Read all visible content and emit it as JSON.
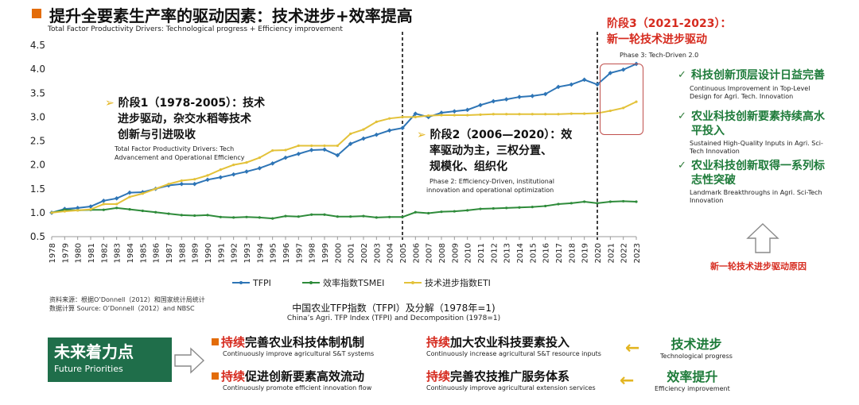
{
  "header": {
    "title": "提升全要素生产率的驱动因素：技术进步+效率提高",
    "subtitle": "Total Factor Productivity Drivers: Technological progress + Efficiency improvement"
  },
  "phases": {
    "p1": {
      "cn_1": "阶段1（1978-2005）：技术",
      "cn_2": "进步驱动，杂交水稻等技术",
      "cn_3": "创新与引进吸收",
      "en_1": "Total Factor Productivity Drivers: Tech",
      "en_2": "Advancement and Operational Efficiency"
    },
    "p2": {
      "cn_1": "阶段2（2006—2020）：效",
      "cn_2": "率驱动为主，三权分置、",
      "cn_3": "规模化、组织化",
      "en_1": "Phase 2: Efficiency-Driven, institutional",
      "en_2": "innovation and operational optimization"
    },
    "p3": {
      "cn_1": "阶段3（2021-2023）：",
      "cn_2": "新一轮技术进步驱动",
      "en": "Phase 3: Tech-Driven 2.0"
    }
  },
  "right_panel": {
    "items": [
      {
        "cn_1": "科技创新顶层设计日益完善",
        "cn_2": "",
        "en_1": "Continuous Improvement in Top-Level",
        "en_2": "Design for Agri. Tech. Innovation"
      },
      {
        "cn_1": "农业科技创新要素持续高水",
        "cn_2": "平投入",
        "en_1": "Sustained High-Quality Inputs in Agri. Sci-",
        "en_2": "Tech Innovation"
      },
      {
        "cn_1": "农业科技创新取得一系列标",
        "cn_2": "志性突破",
        "en_1": "Landmark Breakthroughs in Agri. Sci-Tech",
        "en_2": "Innovation"
      }
    ],
    "reason": "新一轮技术进步驱动原因"
  },
  "source": {
    "line_1": "资料来源：根据O’Donnell（2012）和国家统计局统计",
    "line_2": "数据计算 Source: O’Donnell（2012）and NBSC"
  },
  "caption": {
    "cn": "中国农业TFP指数（TFPI）及分解（1978年=1)",
    "en": "China’s Agri. TFP Index (TFPI) and Decomposition (1978=1)"
  },
  "future": {
    "title_cn": "未来着力点",
    "title_en": "Future Priorities",
    "items": [
      {
        "hl": "持续",
        "rest": "完善农业科技体制机制",
        "en": "Continuously improve agricultural S&T systems"
      },
      {
        "hl": "持续",
        "rest": "加大农业科技要素投入",
        "en": "Continuously increase agricultural S&T resource inputs"
      },
      {
        "hl": "持续",
        "rest": "促进创新要素高效流动",
        "en": "Continuously promote efficient innovation flow"
      },
      {
        "hl": "持续",
        "rest": "完善农技推广服务体系",
        "en": "Continuously improve agricultural extension services"
      }
    ],
    "tags": [
      {
        "cn": "技术进步",
        "en": "Technological progress"
      },
      {
        "cn": "效率提升",
        "en": "Efficiency improvement"
      }
    ]
  },
  "colors": {
    "tfpi": "#2e75b6",
    "tsmei": "#2e8b3a",
    "eti": "#e3c23a",
    "accent_red": "#d62b1f",
    "accent_green": "#1e7b3a",
    "accent_orange": "#e36c09"
  },
  "icons": [
    "check-icon",
    "up-arrow-icon",
    "right-arrow-icon",
    "left-arrow-icon"
  ],
  "chart_data": {
    "type": "line",
    "x": [
      1978,
      1979,
      1980,
      1981,
      1982,
      1983,
      1984,
      1985,
      1986,
      1987,
      1988,
      1989,
      1990,
      1991,
      1992,
      1993,
      1994,
      1995,
      1996,
      1997,
      1998,
      1999,
      2000,
      2001,
      2002,
      2003,
      2004,
      2005,
      2006,
      2007,
      2008,
      2009,
      2010,
      2011,
      2012,
      2013,
      2014,
      2015,
      2016,
      2017,
      2018,
      2019,
      2020,
      2021,
      2022,
      2023
    ],
    "x_tick_labels": [
      "1978",
      "1979",
      "1980",
      "1981",
      "1982",
      "1983",
      "1984",
      "1985",
      "1986",
      "1987",
      "1988",
      "1989",
      "1990",
      "1991",
      "1992",
      "1993",
      "1994",
      "1995",
      "1996",
      "1997",
      "1998",
      "1999",
      "2000",
      "2001",
      "2002",
      "2003",
      "2004",
      "2005",
      "2006",
      "2007",
      "2008",
      "2009",
      "2010",
      "2011",
      "2012",
      "2013",
      "2014",
      "2015",
      "2016",
      "2017",
      "2018",
      "2019",
      "2020",
      "2021",
      "2022",
      "2023"
    ],
    "series": [
      {
        "name": "TFPI",
        "color": "#2e75b6",
        "values": [
          1.0,
          1.08,
          1.1,
          1.13,
          1.25,
          1.3,
          1.42,
          1.43,
          1.5,
          1.57,
          1.6,
          1.6,
          1.69,
          1.74,
          1.8,
          1.86,
          1.93,
          2.03,
          2.15,
          2.23,
          2.31,
          2.32,
          2.2,
          2.44,
          2.55,
          2.63,
          2.72,
          2.77,
          3.07,
          3.0,
          3.09,
          3.12,
          3.15,
          3.25,
          3.33,
          3.37,
          3.42,
          3.44,
          3.48,
          3.63,
          3.68,
          3.78,
          3.68,
          3.92,
          3.99,
          4.11
        ]
      },
      {
        "name": "效率指数TSMEI",
        "color": "#2e8b3a",
        "values": [
          1.0,
          1.06,
          1.05,
          1.06,
          1.06,
          1.1,
          1.07,
          1.04,
          1.01,
          0.98,
          0.95,
          0.94,
          0.95,
          0.91,
          0.9,
          0.91,
          0.9,
          0.88,
          0.93,
          0.92,
          0.96,
          0.96,
          0.92,
          0.92,
          0.93,
          0.9,
          0.91,
          0.91,
          1.01,
          0.99,
          1.02,
          1.03,
          1.05,
          1.08,
          1.09,
          1.1,
          1.11,
          1.12,
          1.14,
          1.18,
          1.2,
          1.23,
          1.2,
          1.23,
          1.24,
          1.23
        ]
      },
      {
        "name": "技术进步指数ETI",
        "color": "#e3c23a",
        "values": [
          1.0,
          1.03,
          1.05,
          1.07,
          1.18,
          1.18,
          1.33,
          1.4,
          1.5,
          1.6,
          1.67,
          1.7,
          1.78,
          1.9,
          2.0,
          2.05,
          2.15,
          2.3,
          2.31,
          2.4,
          2.4,
          2.4,
          2.4,
          2.65,
          2.74,
          2.9,
          2.97,
          3.0,
          3.0,
          3.03,
          3.04,
          3.04,
          3.04,
          3.05,
          3.06,
          3.06,
          3.06,
          3.06,
          3.06,
          3.06,
          3.07,
          3.07,
          3.08,
          3.13,
          3.19,
          3.32
        ]
      }
    ],
    "ylim": [
      0.5,
      4.5
    ],
    "y_ticks": [
      "0.5",
      "1.0",
      "1.5",
      "2.0",
      "2.5",
      "3.0",
      "3.5",
      "4.0",
      "4.5"
    ],
    "phase_dividers": [
      2005,
      2020
    ],
    "grid": false,
    "legend": "bottom"
  }
}
